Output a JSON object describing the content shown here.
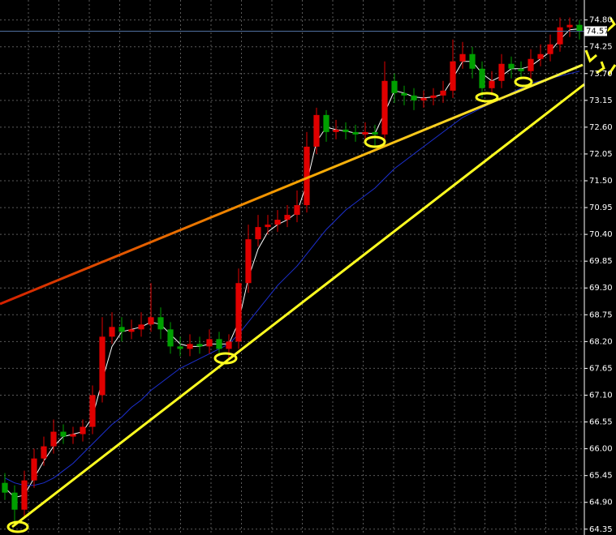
{
  "chart_data": {
    "type": "candlestick",
    "open": [
      65.3,
      65.1,
      64.75,
      65.35,
      65.8,
      66.05,
      66.35,
      66.25,
      66.3,
      66.45,
      67.1,
      68.3,
      68.5,
      68.4,
      68.45,
      68.55,
      68.7,
      68.45,
      68.1,
      68.05,
      68.15,
      68.1,
      68.25,
      68.05,
      68.2,
      69.4,
      70.3,
      70.55,
      70.6,
      70.7,
      70.8,
      71.0,
      72.2,
      72.85,
      72.5,
      72.55,
      72.5,
      72.45,
      72.5,
      72.45,
      73.55,
      73.3,
      73.25,
      73.15,
      73.2,
      73.25,
      73.35,
      73.95,
      74.1,
      73.8,
      73.4,
      73.55,
      73.9,
      73.8,
      73.75,
      74.0,
      74.1,
      74.3,
      74.65,
      74.7
    ],
    "high": [
      65.5,
      65.25,
      65.55,
      66.0,
      66.25,
      66.6,
      66.5,
      66.45,
      66.6,
      67.3,
      68.7,
      68.8,
      68.7,
      68.65,
      68.8,
      69.4,
      68.9,
      68.6,
      68.3,
      68.35,
      68.3,
      68.45,
      68.4,
      68.35,
      69.7,
      70.6,
      70.8,
      70.8,
      70.9,
      71.0,
      71.3,
      72.5,
      73.0,
      72.95,
      72.75,
      72.7,
      72.65,
      72.7,
      72.65,
      73.95,
      73.7,
      73.45,
      73.4,
      73.35,
      73.4,
      73.55,
      74.4,
      74.35,
      74.25,
      73.95,
      73.75,
      74.1,
      74.05,
      73.95,
      74.2,
      74.3,
      74.5,
      74.85,
      74.85,
      74.8
    ],
    "low": [
      64.95,
      64.45,
      64.6,
      65.2,
      65.65,
      65.9,
      66.1,
      66.1,
      66.15,
      66.3,
      66.95,
      68.15,
      68.2,
      68.25,
      68.3,
      68.4,
      68.25,
      67.95,
      67.9,
      67.9,
      67.95,
      67.95,
      67.9,
      67.85,
      68.05,
      69.2,
      70.15,
      70.4,
      70.45,
      70.55,
      70.65,
      70.85,
      72.05,
      72.3,
      72.35,
      72.35,
      72.3,
      72.3,
      72.2,
      72.3,
      73.1,
      73.05,
      72.95,
      73.0,
      73.05,
      73.1,
      73.2,
      73.8,
      73.6,
      73.2,
      73.25,
      73.4,
      73.6,
      73.6,
      73.6,
      73.85,
      73.95,
      74.15,
      74.45,
      74.4
    ],
    "close": [
      65.1,
      64.75,
      65.35,
      65.8,
      66.05,
      66.35,
      66.25,
      66.3,
      66.45,
      67.1,
      68.3,
      68.5,
      68.4,
      68.45,
      68.55,
      68.7,
      68.45,
      68.1,
      68.05,
      68.15,
      68.1,
      68.25,
      68.05,
      68.2,
      69.4,
      70.3,
      70.55,
      70.6,
      70.7,
      70.8,
      71.0,
      72.2,
      72.85,
      72.5,
      72.55,
      72.5,
      72.45,
      72.5,
      72.45,
      73.55,
      73.3,
      73.25,
      73.15,
      73.2,
      73.25,
      73.35,
      73.95,
      74.1,
      73.8,
      73.4,
      73.55,
      73.9,
      73.8,
      73.75,
      74.0,
      74.1,
      74.3,
      74.65,
      74.7,
      74.57
    ],
    "up_color": "#e00000",
    "down_color": "#00a000",
    "lines": [
      {
        "color": "#ffffff",
        "values": [
          65.2,
          65.0,
          65.05,
          65.4,
          65.75,
          66.05,
          66.25,
          66.3,
          66.35,
          66.65,
          67.4,
          68.1,
          68.4,
          68.45,
          68.5,
          68.6,
          68.55,
          68.35,
          68.15,
          68.1,
          68.1,
          68.15,
          68.15,
          68.15,
          68.6,
          69.5,
          70.1,
          70.45,
          70.6,
          70.7,
          70.85,
          71.45,
          72.3,
          72.6,
          72.55,
          72.52,
          72.48,
          72.48,
          72.47,
          72.9,
          73.35,
          73.3,
          73.22,
          73.2,
          73.22,
          73.28,
          73.6,
          73.95,
          73.95,
          73.7,
          73.55,
          73.65,
          73.8,
          73.8,
          73.85,
          74.0,
          74.15,
          74.4,
          74.6,
          74.62
        ]
      },
      {
        "color": "#1c2fd0",
        "values": [
          65.4,
          65.3,
          65.25,
          65.25,
          65.3,
          65.4,
          65.55,
          65.7,
          65.9,
          66.1,
          66.3,
          66.5,
          66.65,
          66.85,
          67.0,
          67.2,
          67.35,
          67.5,
          67.65,
          67.75,
          67.85,
          67.95,
          68.05,
          68.15,
          68.35,
          68.6,
          68.85,
          69.1,
          69.35,
          69.55,
          69.75,
          70.0,
          70.25,
          70.5,
          70.7,
          70.9,
          71.05,
          71.2,
          71.35,
          71.55,
          71.75,
          71.9,
          72.05,
          72.2,
          72.35,
          72.5,
          72.65,
          72.8,
          72.9,
          73.0,
          73.1,
          73.2,
          73.3,
          73.4,
          73.5,
          73.55,
          73.6,
          73.65,
          73.7,
          73.75
        ]
      }
    ],
    "last_price": 74.57,
    "ylim": [
      64.23,
      75.21
    ],
    "yticks": [
      64.35,
      {
        "value": 64.9,
        "label": "64.90"
      },
      65.45,
      {
        "value": 66,
        "label": "66.00"
      },
      66.55,
      {
        "value": 67.1,
        "label": "67.10"
      },
      67.65,
      {
        "value": 68.2,
        "label": "68.20"
      },
      68.75,
      {
        "value": 69.3,
        "label": "69.30"
      },
      69.85,
      {
        "value": 70.4,
        "label": "70.40"
      },
      70.95,
      {
        "value": 71.5,
        "label": "71.50"
      },
      72.05,
      {
        "value": 72.6,
        "label": "72.60"
      },
      73.15,
      {
        "value": 73.7,
        "label": "73.70"
      },
      74.25,
      {
        "value": 74.8,
        "label": "74.80"
      }
    ],
    "grid": true
  }
}
